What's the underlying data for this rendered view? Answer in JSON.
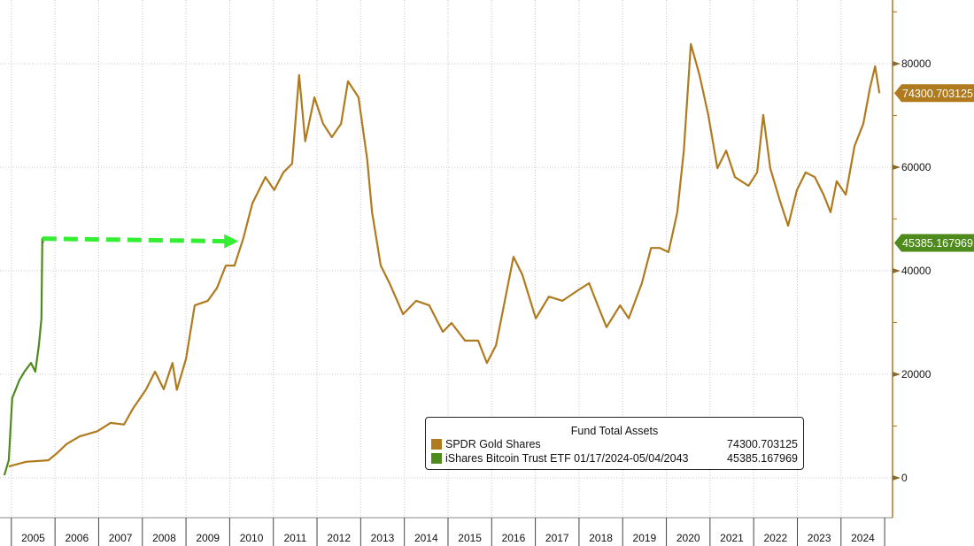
{
  "chart_data": {
    "type": "line",
    "title": "Fund Total Assets",
    "xlabel": "",
    "ylabel": "",
    "xlim": [
      2004.74,
      2025.18
    ],
    "ylim": [
      -7700,
      92300
    ],
    "y_ticks": [
      0,
      20000,
      40000,
      60000,
      80000
    ],
    "y_tick_labels": [
      "0",
      "20000",
      "40000",
      "60000",
      "80000"
    ],
    "x_tick_labels": [
      "2005",
      "2006",
      "2007",
      "2008",
      "2009",
      "2010",
      "2011",
      "2012",
      "2013",
      "2014",
      "2015",
      "2016",
      "2017",
      "2018",
      "2019",
      "2020",
      "2021",
      "2022",
      "2023",
      "2024"
    ],
    "grid": true,
    "legend_position": "bottom-right",
    "series": [
      {
        "name": "SPDR Gold Shares",
        "legend_value": "74300.703125",
        "last_value_label": "74300.703125",
        "color": "#b07a1e",
        "x": [
          2004.94,
          2005.34,
          2005.85,
          2006.05,
          2006.26,
          2006.56,
          2006.97,
          2007.27,
          2007.58,
          2007.78,
          2008.08,
          2008.29,
          2008.49,
          2008.69,
          2008.79,
          2009.0,
          2009.2,
          2009.5,
          2009.71,
          2009.91,
          2010.11,
          2010.31,
          2010.52,
          2010.82,
          2011.02,
          2011.23,
          2011.43,
          2011.59,
          2011.73,
          2011.94,
          2012.14,
          2012.34,
          2012.55,
          2012.71,
          2012.95,
          2013.15,
          2013.26,
          2013.46,
          2013.66,
          2013.97,
          2014.27,
          2014.57,
          2014.88,
          2015.08,
          2015.39,
          2015.69,
          2015.89,
          2016.1,
          2016.3,
          2016.5,
          2016.7,
          2017.01,
          2017.31,
          2017.62,
          2017.92,
          2018.23,
          2018.43,
          2018.63,
          2018.94,
          2019.14,
          2019.44,
          2019.65,
          2019.85,
          2020.05,
          2020.25,
          2020.4,
          2020.56,
          2020.76,
          2020.96,
          2021.17,
          2021.37,
          2021.57,
          2021.88,
          2022.08,
          2022.22,
          2022.38,
          2022.59,
          2022.79,
          2022.99,
          2023.19,
          2023.4,
          2023.6,
          2023.76,
          2023.9,
          2024.11,
          2024.31,
          2024.51,
          2024.66,
          2024.78,
          2024.88
        ],
        "values": [
          2200,
          3100,
          3400,
          4800,
          6500,
          8000,
          9000,
          10600,
          10300,
          13300,
          17000,
          20500,
          17100,
          22200,
          17000,
          23000,
          33300,
          34200,
          36700,
          41000,
          41000,
          46200,
          53000,
          58100,
          55600,
          59000,
          60700,
          77800,
          65000,
          73500,
          68400,
          65800,
          68400,
          76600,
          73500,
          61500,
          51300,
          41000,
          37600,
          31600,
          34200,
          33300,
          28200,
          29900,
          26500,
          26500,
          22200,
          25600,
          34200,
          42700,
          39300,
          30800,
          35000,
          34200,
          35900,
          37600,
          33300,
          29100,
          33300,
          30800,
          37600,
          44400,
          44400,
          43600,
          51300,
          63200,
          83800,
          77800,
          70100,
          59800,
          63200,
          58100,
          56400,
          59000,
          70100,
          59800,
          53800,
          48700,
          55600,
          59000,
          58100,
          54700,
          51300,
          57300,
          54700,
          64100,
          68400,
          75200,
          79500,
          74300
        ]
      },
      {
        "name": "iShares Bitcoin Trust ETF 01/17/2024-05/04/2043",
        "legend_value": "45385.167969",
        "last_value_label": "45385.167969",
        "color": "#4e8a1c",
        "x": [
          2004.84,
          2004.94,
          2005.02,
          2005.1,
          2005.18,
          2005.3,
          2005.45,
          2005.55,
          2005.63,
          2005.69,
          2005.71,
          2005.73
        ],
        "values": [
          500,
          3400,
          15400,
          17100,
          18800,
          20500,
          22200,
          20500,
          25600,
          30800,
          46200,
          45385
        ]
      }
    ],
    "annotations": [
      {
        "type": "dashed-arrow",
        "color": "#33ee33",
        "from": [
          2005.71,
          46200
        ],
        "to": [
          2010.2,
          45700
        ]
      }
    ]
  }
}
